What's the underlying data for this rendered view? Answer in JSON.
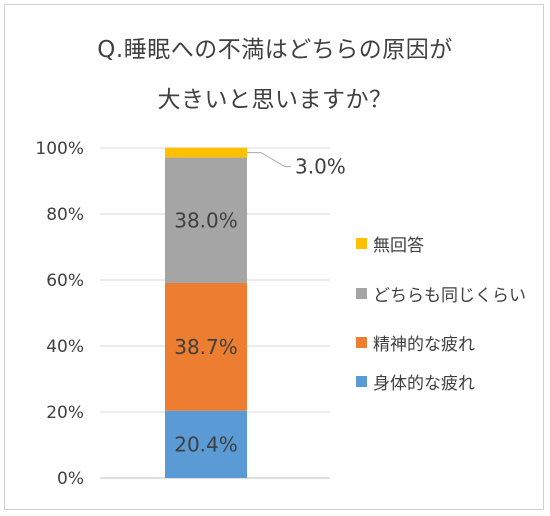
{
  "chart_data": {
    "type": "bar",
    "stacked": true,
    "title_lines": [
      "Q.睡眠への不満はどちらの原因が",
      "大きいと思いますか？"
    ],
    "y_ticks": [
      "0%",
      "20%",
      "40%",
      "60%",
      "80%",
      "100%"
    ],
    "ylim": [
      0,
      100
    ],
    "grid": true,
    "legend_position": "right",
    "series": [
      {
        "name": "身体的な疲れ",
        "value": 20.4,
        "label": "20.4%",
        "color": "#5B9BD5"
      },
      {
        "name": "精神的な疲れ",
        "value": 38.7,
        "label": "38.7%",
        "color": "#ED7D31"
      },
      {
        "name": "どちらも同じくらい",
        "value": 38.0,
        "label": "38.0%",
        "color": "#A5A5A5"
      },
      {
        "name": "無回答",
        "value": 3.0,
        "label": "3.0%",
        "color": "#FFC000"
      }
    ],
    "legend_order": [
      3,
      2,
      1,
      0
    ]
  }
}
